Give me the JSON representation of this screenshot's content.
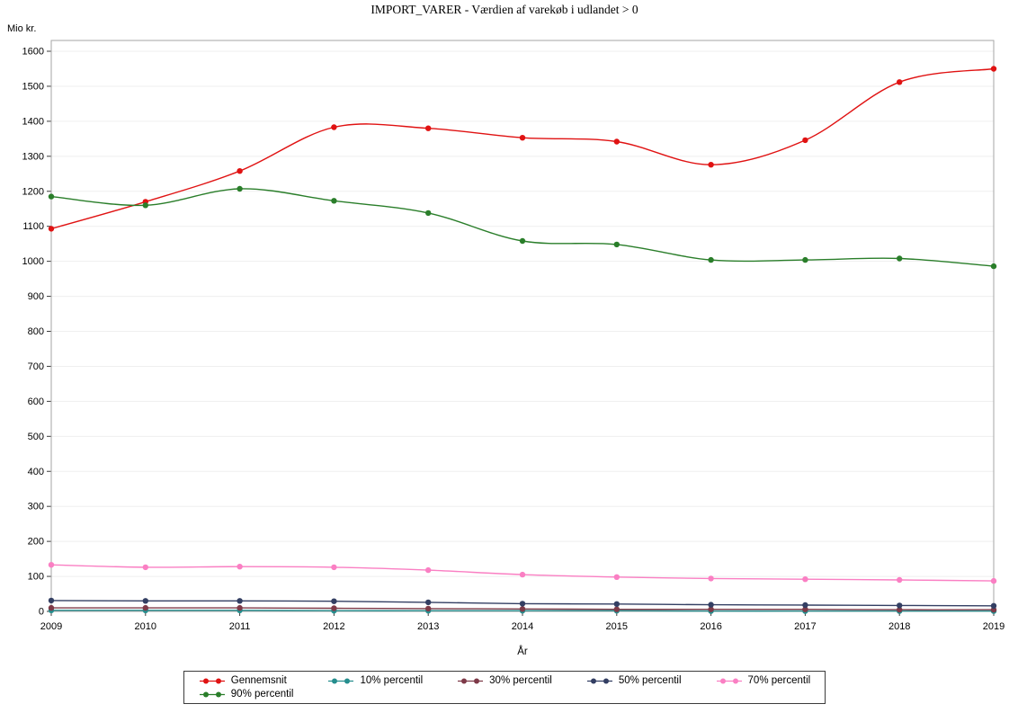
{
  "chart_data": {
    "type": "line",
    "title": "IMPORT_VARER - Værdien af varekøb i udlandet > 0",
    "xlabel": "År",
    "ylabel": "Mio kr.",
    "ylim": [
      0,
      1600
    ],
    "ytick_step": 100,
    "grid": true,
    "legend_position": "bottom",
    "categories": [
      "2009",
      "2010",
      "2011",
      "2012",
      "2013",
      "2014",
      "2015",
      "2016",
      "2017",
      "2018",
      "2019"
    ],
    "series": [
      {
        "name": "Gennemsnit",
        "color": "#e01212",
        "values": [
          1093,
          1170,
          1258,
          1383,
          1380,
          1353,
          1342,
          1276,
          1346,
          1512,
          1550
        ]
      },
      {
        "name": "10% percentil",
        "color": "#258e8e",
        "values": [
          3,
          3,
          3,
          2,
          2,
          2,
          2,
          1,
          1,
          1,
          1
        ]
      },
      {
        "name": "30% percentil",
        "color": "#7e3a48",
        "values": [
          10,
          10,
          10,
          9,
          8,
          7,
          6,
          6,
          6,
          5,
          5
        ]
      },
      {
        "name": "50% percentil",
        "color": "#333f63",
        "values": [
          31,
          30,
          30,
          29,
          26,
          22,
          21,
          19,
          18,
          17,
          16
        ]
      },
      {
        "name": "70% percentil",
        "color": "#fa7fc3",
        "values": [
          133,
          126,
          128,
          126,
          118,
          105,
          98,
          94,
          92,
          90,
          87
        ]
      },
      {
        "name": "90% percentil",
        "color": "#2a7e2a",
        "values": [
          1185,
          1160,
          1207,
          1173,
          1138,
          1058,
          1048,
          1004,
          1004,
          1008,
          986
        ]
      }
    ],
    "style": {
      "grid_color": "#efefef",
      "frame_color": "#a6a6a6",
      "tick_color": "#3c3c3c",
      "text_color": "#000000"
    }
  }
}
